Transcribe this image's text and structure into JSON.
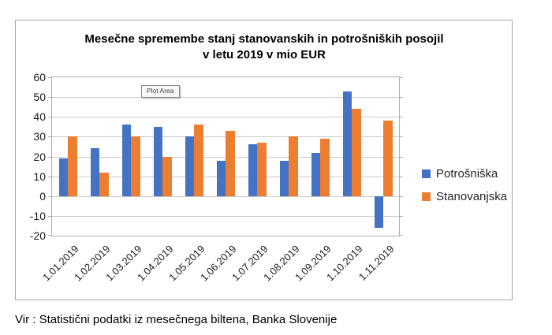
{
  "chart_data": {
    "type": "bar",
    "title_line1": "Mesečne spremembe stanj stanovanskih in potrošniških posojil",
    "title_line2": "v letu 2019 v mio EUR",
    "categories": [
      "1.01.2019",
      "1.02.2019",
      "1.03.2019",
      "1.04.2019",
      "1.05.2019",
      "1.06.2019",
      "1.07.2019",
      "1.08.2019",
      "1.09.2019",
      "1.10.2019",
      "1.11.2019"
    ],
    "series": [
      {
        "name": "Potrošniška",
        "color": "#4472C4",
        "values": [
          19,
          24,
          36,
          35,
          30,
          18,
          26,
          18,
          22,
          53,
          -16
        ]
      },
      {
        "name": "Stanovanjska",
        "color": "#ED7D31",
        "values": [
          30,
          12,
          30,
          20,
          36,
          33,
          27,
          30,
          29,
          44,
          38
        ]
      }
    ],
    "ylim": [
      -20,
      60
    ],
    "yticks": [
      60,
      50,
      40,
      30,
      20,
      10,
      0,
      -10,
      -20
    ],
    "grid": true,
    "legend_position": "right",
    "plot_area_label": "Plot Area"
  },
  "source_note": "Vir : Statistični podatki iz mesečnega biltena, Banka Slovenije",
  "colors": {
    "series_blue": "#4472C4",
    "series_orange": "#ED7D31",
    "gridline": "#C9C9C9",
    "plot_border": "#ADADAD",
    "chart_border": "#A6A6A6"
  }
}
